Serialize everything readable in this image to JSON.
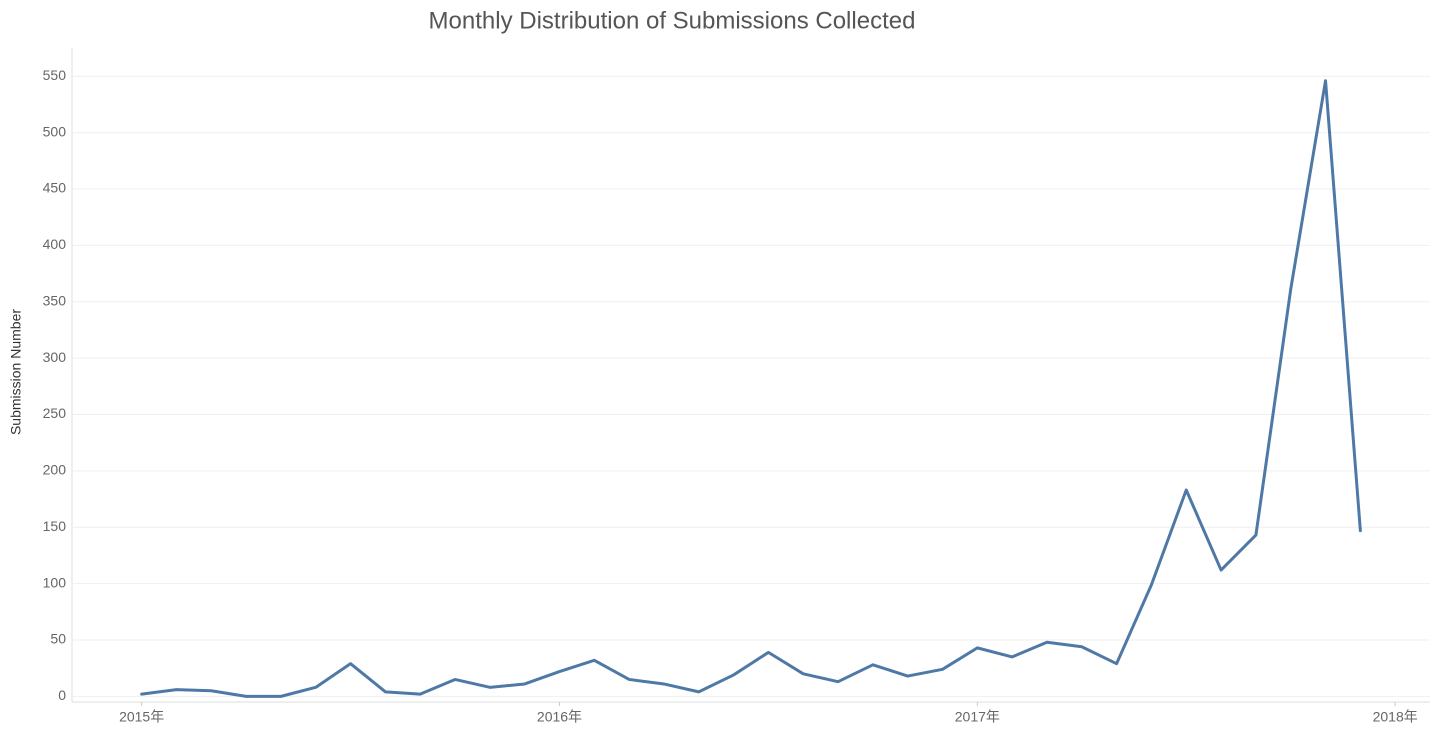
{
  "chart_data": {
    "type": "line",
    "title": "Monthly Distribution of Submissions Collected",
    "y_label": "Submission Number",
    "x": [
      "2015-01",
      "2015-02",
      "2015-03",
      "2015-04",
      "2015-05",
      "2015-06",
      "2015-07",
      "2015-08",
      "2015-09",
      "2015-10",
      "2015-11",
      "2015-12",
      "2016-01",
      "2016-02",
      "2016-03",
      "2016-04",
      "2016-05",
      "2016-06",
      "2016-07",
      "2016-08",
      "2016-09",
      "2016-10",
      "2016-11",
      "2016-12",
      "2017-01",
      "2017-02",
      "2017-03",
      "2017-04",
      "2017-05",
      "2017-06",
      "2017-07",
      "2017-08",
      "2017-09",
      "2017-10",
      "2017-11",
      "2017-12"
    ],
    "series": [
      {
        "name": "Submission Number",
        "color": "#4e79a7",
        "values": [
          2,
          6,
          5,
          0,
          0,
          8,
          29,
          4,
          2,
          15,
          8,
          11,
          22,
          32,
          15,
          11,
          4,
          19,
          39,
          20,
          13,
          28,
          18,
          24,
          43,
          35,
          48,
          44,
          29,
          99,
          183,
          112,
          143,
          361,
          546,
          147
        ]
      }
    ],
    "xlim": [
      "2014-11",
      "2018-02"
    ],
    "xticks": [
      {
        "value": "2015-01",
        "label": "2015年"
      },
      {
        "value": "2016-01",
        "label": "2016年"
      },
      {
        "value": "2017-01",
        "label": "2017年"
      },
      {
        "value": "2018-01",
        "label": "2018年"
      }
    ],
    "ylim": [
      -5,
      575
    ],
    "yticks": [
      0,
      50,
      100,
      150,
      200,
      250,
      300,
      350,
      400,
      450,
      500,
      550
    ],
    "grid": true
  }
}
